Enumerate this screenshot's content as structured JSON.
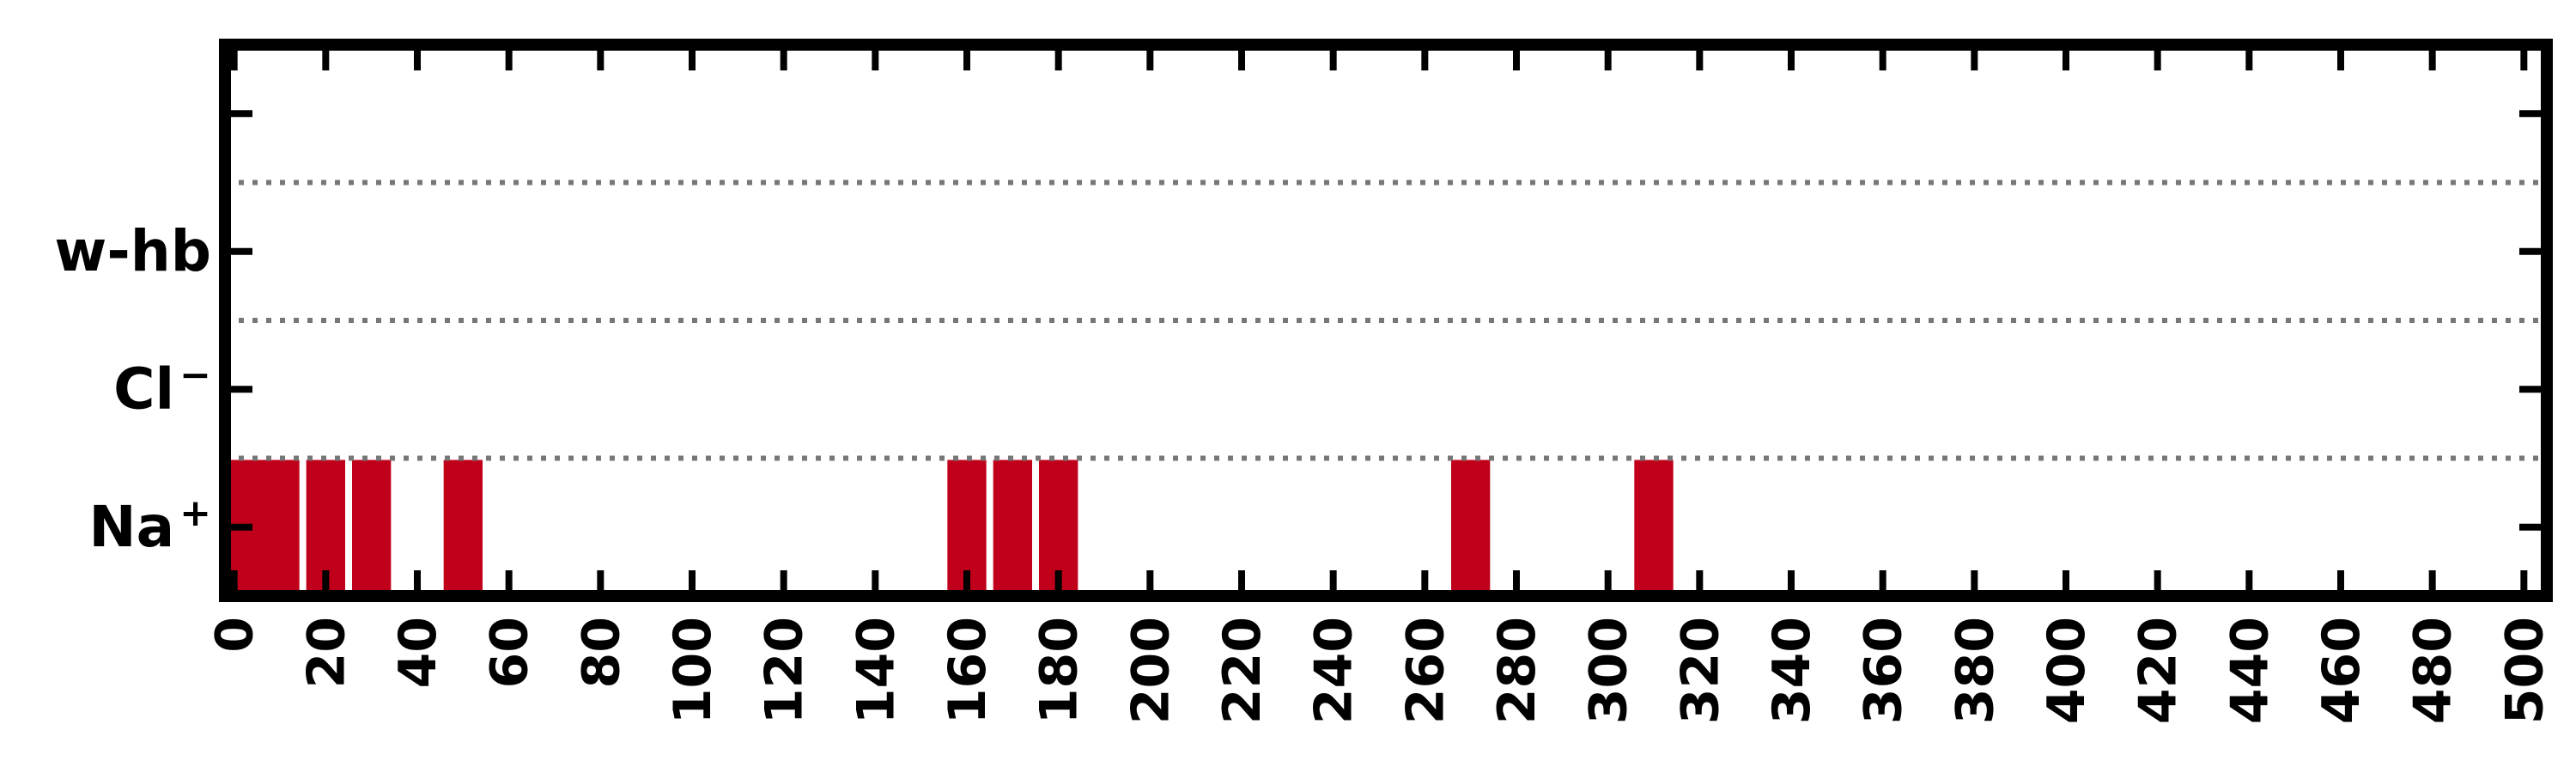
{
  "chart_data": {
    "type": "bar",
    "categories": [
      "Na",
      "Cl",
      "w-hb"
    ],
    "category_labels": [
      {
        "base": "Na",
        "sup": "+"
      },
      {
        "base": "Cl",
        "sup": "−"
      },
      {
        "base": "w-hb",
        "sup": ""
      }
    ],
    "x_ticks": [
      "0",
      "20",
      "40",
      "60",
      "80",
      "100",
      "120",
      "140",
      "160",
      "180",
      "200",
      "220",
      "240",
      "260",
      "280",
      "300",
      "320",
      "340",
      "360",
      "380",
      "400",
      "420",
      "440",
      "460",
      "480",
      "500"
    ],
    "xlim": [
      -2,
      505
    ],
    "bar_width": 8.5,
    "series": [
      {
        "category": "Na",
        "x": [
          2,
          10,
          20,
          30,
          50,
          160,
          170,
          180,
          270,
          310
        ],
        "color": "#c0001a"
      }
    ],
    "separators": [
      0.5,
      1.5,
      2.5
    ],
    "grid": false,
    "xlabel": "",
    "ylabel": ""
  }
}
